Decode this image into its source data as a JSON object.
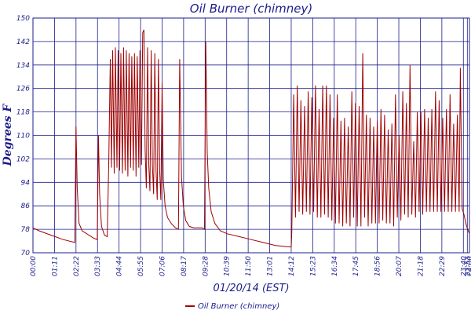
{
  "chart_data": {
    "type": "line",
    "title": "Oil Burner (chimney)",
    "xlabel": "01/20/14 (EST)",
    "ylabel": "Degrees F",
    "ylim": [
      70,
      150
    ],
    "yticks": [
      70,
      78,
      86,
      94,
      102,
      110,
      118,
      126,
      134,
      142,
      150
    ],
    "xlim": [
      0,
      1440
    ],
    "xtick_positions": [
      0,
      71,
      142,
      213,
      284,
      355,
      426,
      497,
      568,
      639,
      710,
      781,
      852,
      923,
      994,
      1065,
      1136,
      1207,
      1278,
      1349,
      1420,
      1433,
      1440
    ],
    "xtick_labels": [
      "00:00",
      "01:11",
      "02:22",
      "03:33",
      "04:44",
      "05:55",
      "07:06",
      "08:17",
      "09:28",
      "10:39",
      "11:50",
      "13:01",
      "14:12",
      "15:23",
      "16:34",
      "17:45",
      "18:56",
      "20:07",
      "21:18",
      "22:29",
      "23:40",
      "23:53",
      "24:00"
    ],
    "grid": true,
    "legend_position": "bottom-center",
    "series": [
      {
        "name": "Oil Burner (chimney)",
        "color": "#a00000",
        "x_units": "minutes since 00:00",
        "points": [
          [
            0,
            78.5
          ],
          [
            20,
            77.5
          ],
          [
            60,
            76
          ],
          [
            100,
            74.5
          ],
          [
            138,
            73.5
          ],
          [
            142,
            113
          ],
          [
            146,
            92
          ],
          [
            152,
            80
          ],
          [
            162,
            77.5
          ],
          [
            200,
            75
          ],
          [
            212,
            74.5
          ],
          [
            216,
            110
          ],
          [
            220,
            90
          ],
          [
            226,
            79
          ],
          [
            236,
            76
          ],
          [
            245,
            75.5
          ],
          [
            250,
            100
          ],
          [
            255,
            136
          ],
          [
            259,
            99
          ],
          [
            263,
            139
          ],
          [
            268,
            97
          ],
          [
            272,
            140
          ],
          [
            277,
            99
          ],
          [
            281,
            139
          ],
          [
            286,
            98
          ],
          [
            290,
            138
          ],
          [
            295,
            97
          ],
          [
            299,
            140
          ],
          [
            304,
            98
          ],
          [
            308,
            139
          ],
          [
            313,
            96
          ],
          [
            317,
            138
          ],
          [
            322,
            99
          ],
          [
            326,
            137
          ],
          [
            331,
            98
          ],
          [
            335,
            138
          ],
          [
            340,
            96
          ],
          [
            344,
            137
          ],
          [
            349,
            99
          ],
          [
            353,
            139
          ],
          [
            358,
            100
          ],
          [
            362,
            145
          ],
          [
            366,
            146
          ],
          [
            370,
            105
          ],
          [
            374,
            92
          ],
          [
            378,
            140
          ],
          [
            382,
            100
          ],
          [
            386,
            91
          ],
          [
            390,
            139
          ],
          [
            394,
            100
          ],
          [
            398,
            90
          ],
          [
            402,
            138
          ],
          [
            406,
            98
          ],
          [
            410,
            88
          ],
          [
            414,
            136
          ],
          [
            418,
            98
          ],
          [
            422,
            88
          ],
          [
            426,
            128
          ],
          [
            430,
            95
          ],
          [
            436,
            86
          ],
          [
            444,
            82
          ],
          [
            456,
            80
          ],
          [
            470,
            78.5
          ],
          [
            480,
            78
          ],
          [
            484,
            136
          ],
          [
            490,
            96
          ],
          [
            496,
            86
          ],
          [
            504,
            81
          ],
          [
            516,
            79
          ],
          [
            530,
            78.5
          ],
          [
            545,
            78.5
          ],
          [
            558,
            78.5
          ],
          [
            566,
            78
          ],
          [
            570,
            142
          ],
          [
            575,
            104
          ],
          [
            580,
            92
          ],
          [
            588,
            84
          ],
          [
            600,
            80
          ],
          [
            618,
            77.5
          ],
          [
            640,
            76.5
          ],
          [
            680,
            75.5
          ],
          [
            720,
            74.5
          ],
          [
            760,
            73.5
          ],
          [
            800,
            72.5
          ],
          [
            845,
            72
          ],
          [
            852,
            72
          ],
          [
            854,
            77
          ],
          [
            860,
            124
          ],
          [
            866,
            82
          ],
          [
            872,
            127
          ],
          [
            878,
            84
          ],
          [
            884,
            122
          ],
          [
            890,
            83
          ],
          [
            896,
            120
          ],
          [
            902,
            84
          ],
          [
            908,
            125
          ],
          [
            914,
            83
          ],
          [
            920,
            123
          ],
          [
            926,
            84
          ],
          [
            932,
            127
          ],
          [
            938,
            82
          ],
          [
            944,
            119
          ],
          [
            950,
            82
          ],
          [
            956,
            127
          ],
          [
            962,
            83
          ],
          [
            968,
            127
          ],
          [
            974,
            82
          ],
          [
            980,
            124
          ],
          [
            986,
            81
          ],
          [
            992,
            116
          ],
          [
            998,
            80
          ],
          [
            1004,
            124
          ],
          [
            1010,
            80
          ],
          [
            1016,
            115
          ],
          [
            1022,
            79
          ],
          [
            1028,
            116
          ],
          [
            1034,
            80
          ],
          [
            1040,
            113
          ],
          [
            1046,
            79
          ],
          [
            1052,
            125
          ],
          [
            1058,
            82
          ],
          [
            1064,
            121
          ],
          [
            1070,
            79
          ],
          [
            1076,
            120
          ],
          [
            1082,
            79
          ],
          [
            1088,
            138
          ],
          [
            1094,
            82
          ],
          [
            1100,
            117
          ],
          [
            1106,
            79
          ],
          [
            1112,
            116
          ],
          [
            1118,
            80
          ],
          [
            1124,
            113
          ],
          [
            1130,
            80
          ],
          [
            1136,
            115
          ],
          [
            1142,
            80
          ],
          [
            1148,
            119
          ],
          [
            1154,
            81
          ],
          [
            1160,
            117
          ],
          [
            1166,
            80
          ],
          [
            1172,
            112
          ],
          [
            1178,
            80
          ],
          [
            1184,
            114
          ],
          [
            1190,
            79
          ],
          [
            1196,
            124
          ],
          [
            1202,
            82
          ],
          [
            1208,
            110
          ],
          [
            1214,
            81
          ],
          [
            1220,
            125
          ],
          [
            1226,
            83
          ],
          [
            1232,
            121
          ],
          [
            1238,
            82
          ],
          [
            1244,
            134
          ],
          [
            1250,
            83
          ],
          [
            1256,
            108
          ],
          [
            1262,
            82
          ],
          [
            1268,
            118
          ],
          [
            1274,
            84
          ],
          [
            1280,
            118
          ],
          [
            1286,
            83
          ],
          [
            1292,
            119
          ],
          [
            1298,
            84
          ],
          [
            1304,
            116
          ],
          [
            1310,
            84
          ],
          [
            1316,
            119
          ],
          [
            1322,
            84
          ],
          [
            1328,
            125
          ],
          [
            1334,
            84
          ],
          [
            1340,
            122
          ],
          [
            1346,
            84
          ],
          [
            1352,
            116
          ],
          [
            1358,
            84
          ],
          [
            1364,
            119
          ],
          [
            1370,
            84
          ],
          [
            1376,
            124
          ],
          [
            1382,
            84
          ],
          [
            1388,
            114
          ],
          [
            1394,
            84
          ],
          [
            1400,
            117
          ],
          [
            1406,
            84
          ],
          [
            1410,
            133
          ],
          [
            1416,
            85
          ],
          [
            1422,
            83
          ],
          [
            1428,
            80
          ],
          [
            1434,
            78
          ],
          [
            1440,
            76.5
          ]
        ]
      }
    ]
  }
}
